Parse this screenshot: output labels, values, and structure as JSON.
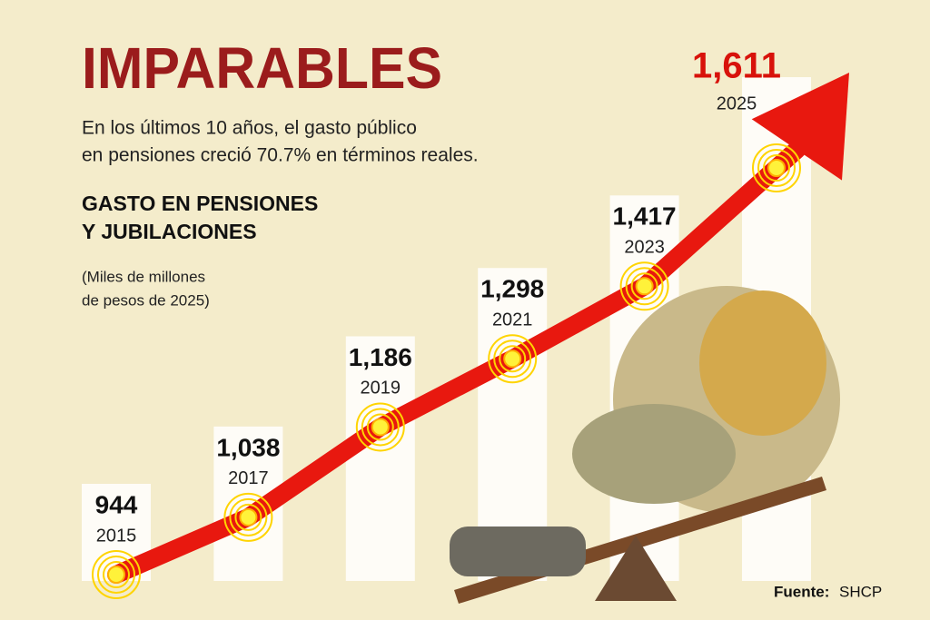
{
  "chart_data": {
    "type": "arrow-line",
    "title": "IMPARABLES",
    "subtitle": [
      "En los últimos 10 años, el gasto público",
      "en pensiones creció 70.7% en términos reales."
    ],
    "heading": [
      "GASTO EN PENSIONES",
      "Y JUBILACIONES"
    ],
    "units": [
      "(Miles de millones",
      "de pesos de 2025)"
    ],
    "categories": [
      "2015",
      "2017",
      "2019",
      "2021",
      "2023",
      "2025"
    ],
    "values": [
      944,
      1038,
      1186,
      1298,
      1417,
      1611
    ],
    "value_labels": [
      "944",
      "1,038",
      "1,186",
      "1,298",
      "1,417",
      "1,611"
    ],
    "color": "#e8180f",
    "source": {
      "label": "Fuente:",
      "text": "SHCP"
    }
  }
}
